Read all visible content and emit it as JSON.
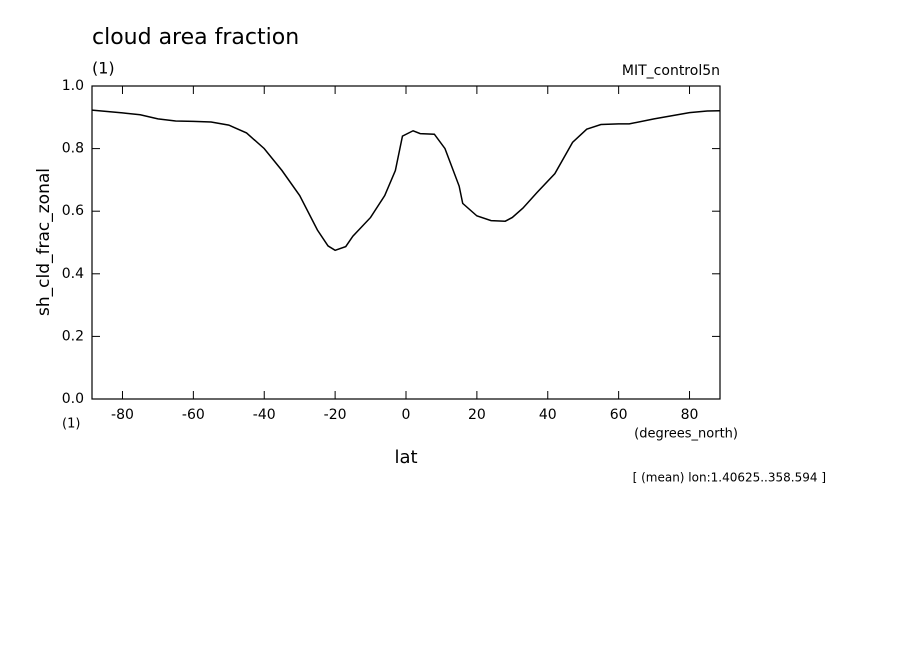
{
  "chart_data": {
    "type": "line",
    "title": "cloud area fraction",
    "subtitle": "(1)",
    "dataset": "MIT_control5n",
    "y_label": "sh_cld_frac_zonal",
    "y_units": "(1)",
    "x_label": "lat",
    "x_units": "(degrees_north)",
    "annotation": "[ (mean) lon:1.40625..358.594 ]",
    "xlim": [
      -88.6,
      88.6
    ],
    "ylim": [
      0,
      1
    ],
    "xticks": [
      -80,
      -60,
      -40,
      -20,
      0,
      20,
      40,
      60,
      80
    ],
    "yticks": [
      {
        "value": 0,
        "label": "0.0"
      },
      0.2,
      0.4,
      0.6,
      0.8,
      {
        "value": 1,
        "label": "1.0"
      }
    ],
    "x": [
      -88.6,
      -80,
      -75,
      -70,
      -65,
      -60,
      -55,
      -50,
      -45,
      -40,
      -35,
      -30,
      -25,
      -22,
      -20,
      -17,
      -15,
      -10,
      -6,
      -3,
      -1,
      2,
      4,
      8,
      11,
      15,
      16,
      20,
      24,
      28,
      30,
      33,
      37,
      42,
      47,
      51,
      55,
      60,
      63,
      70,
      75,
      80,
      85,
      88.6
    ],
    "series": [
      {
        "color": "#000000",
        "values": [
          0.923,
          0.914,
          0.908,
          0.895,
          0.888,
          0.887,
          0.885,
          0.875,
          0.85,
          0.8,
          0.73,
          0.65,
          0.54,
          0.489,
          0.475,
          0.487,
          0.52,
          0.58,
          0.65,
          0.73,
          0.84,
          0.857,
          0.848,
          0.846,
          0.8,
          0.68,
          0.625,
          0.585,
          0.57,
          0.568,
          0.58,
          0.61,
          0.66,
          0.72,
          0.82,
          0.862,
          0.877,
          0.879,
          0.879,
          0.895,
          0.905,
          0.915,
          0.92,
          0.921
        ]
      }
    ]
  }
}
